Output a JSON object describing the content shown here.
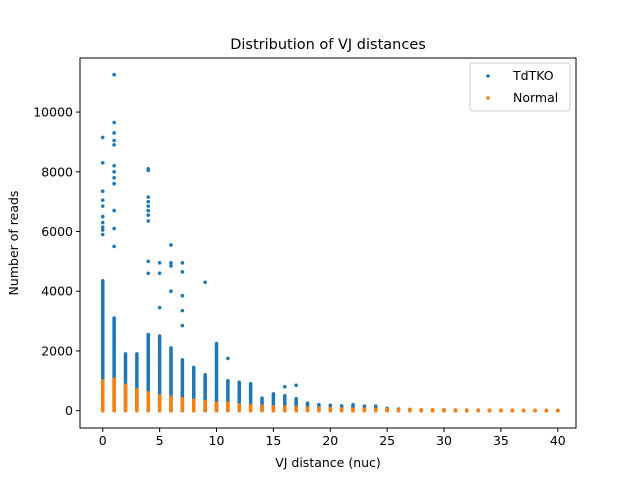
{
  "chart_data": {
    "type": "scatter",
    "title": "Distribution of VJ distances",
    "xlabel": "VJ distance (nuc)",
    "ylabel": "Number of reads",
    "xlim": [
      -2,
      41.6
    ],
    "ylim": [
      -580,
      11810
    ],
    "xticks": [
      0,
      5,
      10,
      15,
      20,
      25,
      30,
      35,
      40
    ],
    "yticks": [
      0,
      2000,
      4000,
      6000,
      8000,
      10000
    ],
    "x_tick_labels": [
      "0",
      "5",
      "10",
      "15",
      "20",
      "25",
      "30",
      "35",
      "40"
    ],
    "y_tick_labels": [
      "0",
      "2000",
      "4000",
      "6000",
      "8000",
      "10000"
    ],
    "grid": false,
    "legend_position": "top-right",
    "series": [
      {
        "name": "TdTKO",
        "color": "#1f77b4",
        "column_max": [
          [
            0,
            4350
          ],
          [
            1,
            3100
          ],
          [
            2,
            1900
          ],
          [
            3,
            1900
          ],
          [
            4,
            2550
          ],
          [
            5,
            2500
          ],
          [
            6,
            2100
          ],
          [
            7,
            1700
          ],
          [
            8,
            1450
          ],
          [
            9,
            1200
          ],
          [
            10,
            2250
          ],
          [
            11,
            1000
          ],
          [
            12,
            950
          ],
          [
            13,
            900
          ],
          [
            14,
            420
          ],
          [
            15,
            560
          ],
          [
            16,
            500
          ],
          [
            17,
            400
          ],
          [
            18,
            250
          ],
          [
            19,
            200
          ],
          [
            20,
            180
          ],
          [
            21,
            160
          ],
          [
            22,
            200
          ],
          [
            23,
            150
          ],
          [
            24,
            150
          ],
          [
            25,
            80
          ],
          [
            26,
            50
          ],
          [
            27,
            40
          ],
          [
            28,
            30
          ],
          [
            29,
            30
          ],
          [
            30,
            25
          ],
          [
            31,
            20
          ],
          [
            32,
            20
          ],
          [
            33,
            15
          ],
          [
            34,
            15
          ],
          [
            35,
            10
          ],
          [
            36,
            10
          ],
          [
            37,
            10
          ],
          [
            38,
            10
          ],
          [
            39,
            5
          ],
          [
            40,
            5
          ]
        ],
        "outliers": [
          [
            0,
            9150
          ],
          [
            0,
            8300
          ],
          [
            0,
            7350
          ],
          [
            0,
            7050
          ],
          [
            0,
            6850
          ],
          [
            0,
            6500
          ],
          [
            0,
            6300
          ],
          [
            0,
            6150
          ],
          [
            0,
            6050
          ],
          [
            0,
            5900
          ],
          [
            1,
            11250
          ],
          [
            1,
            9650
          ],
          [
            1,
            9300
          ],
          [
            1,
            9050
          ],
          [
            1,
            8900
          ],
          [
            1,
            8200
          ],
          [
            1,
            8000
          ],
          [
            1,
            7800
          ],
          [
            1,
            7600
          ],
          [
            1,
            6700
          ],
          [
            1,
            6100
          ],
          [
            1,
            5500
          ],
          [
            4,
            8100
          ],
          [
            4,
            8050
          ],
          [
            4,
            7150
          ],
          [
            4,
            7000
          ],
          [
            4,
            6850
          ],
          [
            4,
            6700
          ],
          [
            4,
            6550
          ],
          [
            4,
            6350
          ],
          [
            4,
            5000
          ],
          [
            4,
            4600
          ],
          [
            5,
            4950
          ],
          [
            5,
            4600
          ],
          [
            5,
            3450
          ],
          [
            6,
            5550
          ],
          [
            6,
            4950
          ],
          [
            6,
            4850
          ],
          [
            6,
            4000
          ],
          [
            7,
            4950
          ],
          [
            7,
            4650
          ],
          [
            7,
            3850
          ],
          [
            7,
            3350
          ],
          [
            7,
            2850
          ],
          [
            9,
            4300
          ],
          [
            11,
            1750
          ],
          [
            16,
            800
          ],
          [
            17,
            850
          ]
        ]
      },
      {
        "name": "Normal",
        "color": "#ff7f0e",
        "column_max": [
          [
            0,
            1000
          ],
          [
            1,
            1050
          ],
          [
            2,
            850
          ],
          [
            3,
            700
          ],
          [
            4,
            600
          ],
          [
            5,
            500
          ],
          [
            6,
            450
          ],
          [
            7,
            400
          ],
          [
            8,
            350
          ],
          [
            9,
            300
          ],
          [
            10,
            250
          ],
          [
            11,
            250
          ],
          [
            12,
            200
          ],
          [
            13,
            180
          ],
          [
            14,
            150
          ],
          [
            15,
            130
          ],
          [
            16,
            120
          ],
          [
            17,
            100
          ],
          [
            18,
            90
          ],
          [
            19,
            80
          ],
          [
            20,
            70
          ],
          [
            21,
            60
          ],
          [
            22,
            50
          ],
          [
            23,
            50
          ],
          [
            24,
            40
          ],
          [
            25,
            40
          ],
          [
            26,
            30
          ],
          [
            27,
            30
          ],
          [
            28,
            30
          ],
          [
            29,
            25
          ],
          [
            30,
            25
          ],
          [
            31,
            20
          ],
          [
            32,
            20
          ],
          [
            33,
            20
          ],
          [
            34,
            15
          ],
          [
            35,
            15
          ],
          [
            36,
            15
          ],
          [
            37,
            10
          ],
          [
            38,
            10
          ],
          [
            39,
            10
          ],
          [
            40,
            10
          ]
        ],
        "outliers": []
      }
    ]
  }
}
